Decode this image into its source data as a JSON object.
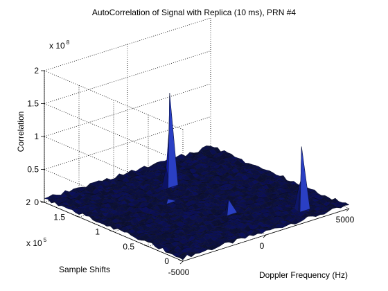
{
  "chart_data": {
    "type": "surface3d",
    "title": "AutoCorrelation of Signal with Replica (10 ms), PRN #4",
    "xlabel": "Doppler Frequency (Hz)",
    "ylabel": "Sample Shifts",
    "zlabel": "Correlation",
    "x_range": [
      -5000,
      5000
    ],
    "y_range": [
      0,
      200000
    ],
    "z_range": [
      0,
      200000000
    ],
    "x_ticks": [
      -5000,
      0,
      5000
    ],
    "x_tick_labels": [
      "-5000",
      "0",
      "5000"
    ],
    "y_ticks": [
      0,
      50000,
      100000,
      150000,
      200000
    ],
    "y_tick_labels": [
      "0",
      "0.5",
      "1",
      "1.5",
      "2"
    ],
    "y_multiplier": "x 10",
    "y_multiplier_exp": "5",
    "z_ticks": [
      0,
      50000000,
      100000000,
      150000000,
      200000000
    ],
    "z_tick_labels": [
      "0",
      "0.5",
      "1",
      "1.5",
      "2"
    ],
    "z_multiplier": "x 10",
    "z_multiplier_exp": "8",
    "grid": true,
    "colormap": "dark blue",
    "floor_level": 5000000,
    "peaks": [
      {
        "x": 450,
        "y": 150000,
        "z": 145000000
      },
      {
        "x": 3050,
        "y": 22000,
        "z": 100000000
      },
      {
        "x": 250,
        "y": 60000,
        "z": 25000000
      },
      {
        "x": -900,
        "y": 120000,
        "z": 8000000
      }
    ]
  }
}
